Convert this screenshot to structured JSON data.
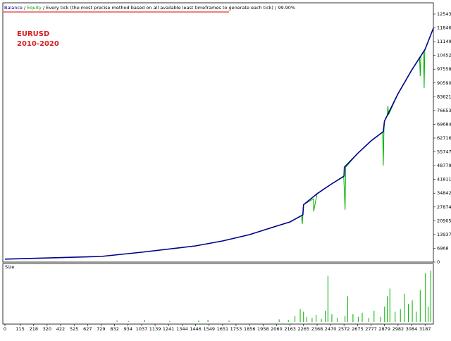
{
  "chart_data": {
    "type": "line",
    "legend_separator": "/",
    "header": "Every tick (the most precise method based on all available least timeframes to generate each tick)",
    "quality": "99.90%",
    "annotations": [
      "EURUSD",
      "2010-2020"
    ],
    "xlim": [
      0,
      3250
    ],
    "ylim": [
      0,
      129700
    ],
    "xticks": [
      0,
      115,
      218,
      320,
      422,
      525,
      627,
      729,
      832,
      934,
      1037,
      1139,
      1241,
      1344,
      1446,
      1549,
      1651,
      1753,
      1856,
      1958,
      2060,
      2163,
      2265,
      2368,
      2470,
      2572,
      2675,
      2777,
      2879,
      2982,
      3084,
      3187
    ],
    "yticks": [
      0,
      6968,
      13937,
      20905,
      27874,
      34842,
      41811,
      48779,
      55747,
      62716,
      69684,
      76653,
      83621,
      90590,
      97558,
      104526,
      111495,
      118463,
      125432
    ],
    "series": [
      {
        "name": "Balance",
        "color": "#00008b",
        "x": [
          0,
          729,
          1037,
          1446,
          1651,
          1856,
          2060,
          2163,
          2260,
          2265,
          2368,
          2470,
          2572,
          2575,
          2675,
          2777,
          2870,
          2879,
          2982,
          3084,
          3187,
          3250
        ],
        "values": [
          1500,
          2850,
          5000,
          8200,
          10700,
          13900,
          18200,
          20300,
          23900,
          29000,
          34600,
          39200,
          43500,
          48000,
          54900,
          61300,
          66000,
          71300,
          85200,
          96900,
          107600,
          118300
        ]
      },
      {
        "name": "Equity",
        "color": "#00b000",
        "x": [
          0,
          729,
          1037,
          1446,
          1651,
          1856,
          2060,
          2163,
          2250,
          2255,
          2260,
          2265,
          2340,
          2342,
          2368,
          2470,
          2570,
          2580,
          2585,
          2675,
          2777,
          2865,
          2870,
          2875,
          2879,
          2900,
          2905,
          2910,
          2982,
          3084,
          3145,
          3150,
          3155,
          3175,
          3180,
          3185,
          3250
        ],
        "values": [
          1500,
          2850,
          5000,
          8200,
          10700,
          13900,
          18200,
          20300,
          23500,
          19200,
          23900,
          29000,
          32000,
          25600,
          34600,
          39200,
          43200,
          26400,
          48000,
          54900,
          61300,
          65800,
          48800,
          66000,
          71300,
          74000,
          79100,
          74500,
          85200,
          96900,
          103500,
          94000,
          104000,
          106800,
          88000,
          107200,
          118300
        ]
      }
    ],
    "size": {
      "name": "Size",
      "color": "#00b000",
      "ylim": [
        0,
        100
      ],
      "x": [
        850,
        940,
        1060,
        1250,
        1470,
        1540,
        1700,
        2080,
        2150,
        2200,
        2240,
        2265,
        2290,
        2330,
        2360,
        2400,
        2430,
        2450,
        2480,
        2520,
        2580,
        2600,
        2640,
        2680,
        2710,
        2760,
        2800,
        2850,
        2880,
        2900,
        2920,
        2960,
        3000,
        3030,
        3060,
        3090,
        3120,
        3150,
        3190,
        3210,
        3230
      ],
      "values": [
        3,
        2,
        4,
        2,
        3,
        4,
        3,
        5,
        4,
        12,
        25,
        20,
        10,
        8,
        14,
        6,
        22,
        90,
        15,
        8,
        12,
        50,
        15,
        10,
        18,
        8,
        22,
        10,
        30,
        50,
        65,
        20,
        25,
        55,
        35,
        42,
        20,
        62,
        95,
        30,
        100
      ]
    }
  }
}
